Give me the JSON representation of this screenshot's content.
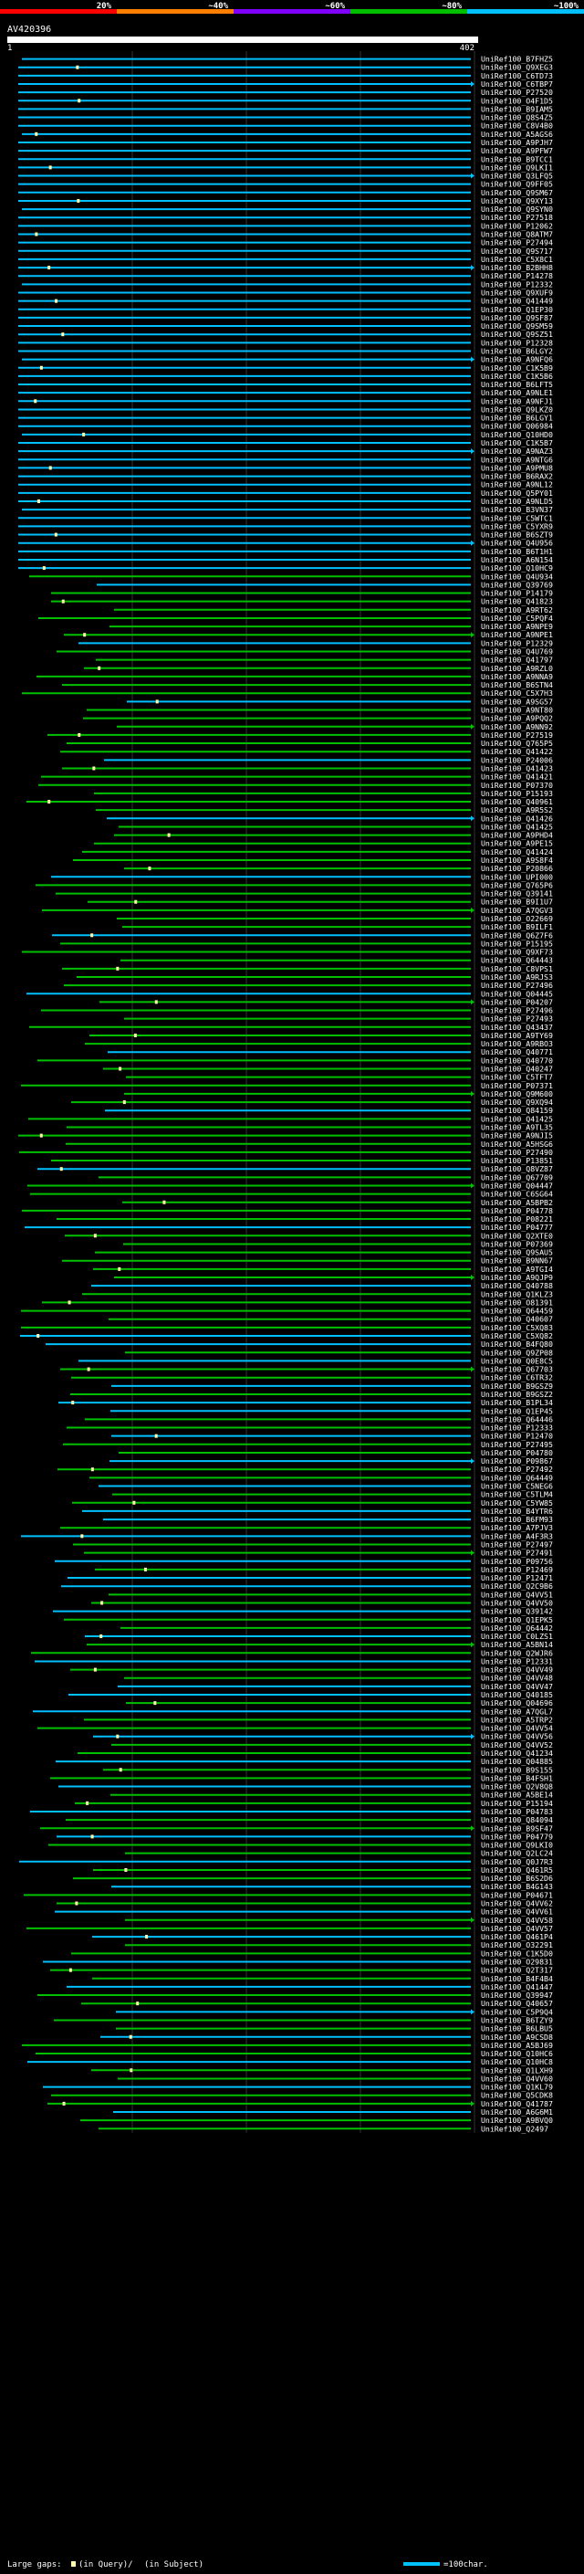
{
  "chart_data": {
    "type": "alignment-map",
    "query_label": "AV420396",
    "query_length": 402,
    "axis_start_label": "1",
    "axis_end_label": "402",
    "identity_legend": [
      {
        "label": "20%",
        "color": "#ff0000"
      },
      {
        "label": "~40%",
        "color": "#ff7f00"
      },
      {
        "label": "~60%",
        "color": "#7f00ff"
      },
      {
        "label": "~80%",
        "color": "#00c000"
      },
      {
        "label": "~100%",
        "color": "#00c0ff"
      }
    ],
    "footer": {
      "large_gaps_label": "Large gaps:",
      "in_query_label": "(in Query)/",
      "in_subject_label": "(in Subject)",
      "scale_label": "=100char."
    },
    "colors": {
      "cyan": "#00c0ff",
      "green": "#00c000",
      "white": "#ffffff",
      "gap_marker": "#ffffaa"
    },
    "hits": [
      "UniRef100_B7FHZ5",
      "UniRef100_Q9XEG3",
      "UniRef100_C6TD73",
      "UniRef100_C6TBP7",
      "UniRef100_P27520",
      "UniRef100_O4F1D5",
      "UniRef100_B9IAM5",
      "UniRef100_Q8S4Z5",
      "UniRef100_C8V4B0",
      "UniRef100_A5AGS6",
      "UniRef100_A9PJH7",
      "UniRef100_A9PFW7",
      "UniRef100_B9TCC1",
      "UniRef100_Q9LKI1",
      "UniRef100_Q3LFQ5",
      "UniRef100_Q9FF05",
      "UniRef100_Q9SM67",
      "UniRef100_Q9XY13",
      "UniRef100_Q9SYN0",
      "UniRef100_P27518",
      "UniRef100_P12062",
      "UniRef100_Q8ATM7",
      "UniRef100_P27494",
      "UniRef100_Q9S717",
      "UniRef100_C5X8C1",
      "UniRef100_B2BHH8",
      "UniRef100_P14278",
      "UniRef100_P12332",
      "UniRef100_Q9XUF9",
      "UniRef100_Q41449",
      "UniRef100_Q1EP30",
      "UniRef100_Q9SF87",
      "UniRef100_Q9SM59",
      "UniRef100_Q9SZ51",
      "UniRef100_P12328",
      "UniRef100_B6LGY2",
      "UniRef100_A9NFQ6",
      "UniRef100_C1K5B9",
      "UniRef100_C1K5B6",
      "UniRef100_B6LFT5",
      "UniRef100_A9NLE1",
      "UniRef100_A9NFJ1",
      "UniRef100_Q9LKZ0",
      "UniRef100_B6LGY1",
      "UniRef100_Q06984",
      "UniRef100_Q10HD0",
      "UniRef100_C1K5B7",
      "UniRef100_A9NAZ3",
      "UniRef100_A9NTG6",
      "UniRef100_A9PMU8",
      "UniRef100_B6RAX2",
      "UniRef100_A9NL12",
      "UniRef100_Q5PY01",
      "UniRef100_A9NLD5",
      "UniRef100_B3VN37",
      "UniRef100_C5WTC1",
      "UniRef100_C5YXR9",
      "UniRef100_B6SZT9",
      "UniRef100_Q4U956",
      "UniRef100_B6T1H1",
      "UniRef100_A6N154",
      "UniRef100_Q10HC9",
      "UniRef100_Q4U934",
      "UniRef100_Q39769",
      "UniRef100_P14179",
      "UniRef100_Q41823",
      "UniRef100_A9RT62",
      "UniRef100_C5PQF4",
      "UniRef100_A9NPE9",
      "UniRef100_A9NPE1",
      "UniRef100_P12329",
      "UniRef100_Q4U769",
      "UniRef100_Q41797",
      "UniRef100_A9RZL0",
      "UniRef100_A9NNA9",
      "UniRef100_B6STN4",
      "UniRef100_C5X7H3",
      "UniRef100_A9SG57",
      "UniRef100_A9NT80",
      "UniRef100_A9PQQ2",
      "UniRef100_A9NN92",
      "UniRef100_P27519",
      "UniRef100_Q765P5",
      "UniRef100_Q41422",
      "UniRef100_P24006",
      "UniRef100_Q41423",
      "UniRef100_Q41421",
      "UniRef100_P07370",
      "UniRef100_P15193",
      "UniRef100_Q40961",
      "UniRef100_A9R5S2",
      "UniRef100_Q41426",
      "UniRef100_Q41425",
      "UniRef100_A9PHD4",
      "UniRef100_A9PE15",
      "UniRef100_Q41424",
      "UniRef100_A9S8F4",
      "UniRef100_P20866",
      "UniRef100_UPI000",
      "UniRef100_Q765P6",
      "UniRef100_Q39141",
      "UniRef100_B9I1U7",
      "UniRef100_A7QGV3",
      "UniRef100_O22669",
      "UniRef100_B9ILF1",
      "UniRef100_Q6Z7F6",
      "UniRef100_P15195",
      "UniRef100_Q9XF73",
      "UniRef100_Q64443",
      "UniRef100_C8VPS1",
      "UniRef100_A9RJS3",
      "UniRef100_P27496",
      "UniRef100_Q04445",
      "UniRef100_P04207",
      "UniRef100_P27496",
      "UniRef100_P27493",
      "UniRef100_Q43437",
      "UniRef100_A9TY69",
      "UniRef100_A9RBO3",
      "UniRef100_Q40771",
      "UniRef100_Q40770",
      "UniRef100_Q40247",
      "UniRef100_C5TFT7",
      "UniRef100_P07371",
      "UniRef100_Q9M600",
      "UniRef100_Q9XQ94",
      "UniRef100_Q84159",
      "UniRef100_Q41425",
      "UniRef100_A9TL35",
      "UniRef100_A9NJI5",
      "UniRef100_A5HSG6",
      "UniRef100_P27490",
      "UniRef100_P13851",
      "UniRef100_Q8VZ87",
      "UniRef100_Q67709",
      "UniRef100_Q04447",
      "UniRef100_C6SG64",
      "UniRef100_A5BPB2",
      "UniRef100_P04778",
      "UniRef100_P08221",
      "UniRef100_P04777",
      "UniRef100_Q2XTE0",
      "UniRef100_P07369",
      "UniRef100_Q9SAU5",
      "UniRef100_B9NN67",
      "UniRef100_A9TGI4",
      "UniRef100_A9QJP9",
      "UniRef100_Q40788",
      "UniRef100_Q1KLZ3",
      "UniRef100_O81391",
      "UniRef100_Q64459",
      "UniRef100_Q40607",
      "UniRef100_C5XQ83",
      "UniRef100_C5XQ82",
      "UniRef100_B4FQ80",
      "UniRef100_Q9ZP08",
      "UniRef100_Q0E8C5",
      "UniRef100_Q67703",
      "UniRef100_C6TR32",
      "UniRef100_B9GSZ9",
      "UniRef100_B9GSZ2",
      "UniRef100_B1PL34",
      "UniRef100_Q1EP45",
      "UniRef100_Q64446",
      "UniRef100_P12333",
      "UniRef100_P12470",
      "UniRef100_P27495",
      "UniRef100_P04780",
      "UniRef100_P09867",
      "UniRef100_P27492",
      "UniRef100_Q64449",
      "UniRef100_C5NEG6",
      "UniRef100_C5TLM4",
      "UniRef100_C5YW85",
      "UniRef100_B4YTR6",
      "UniRef100_B6FM93",
      "UniRef100_A7PJV3",
      "UniRef100_A4F3R3",
      "UniRef100_P27497",
      "UniRef100_P27491",
      "UniRef100_P09756",
      "UniRef100_P12469",
      "UniRef100_P12471",
      "UniRef100_Q2C9B6",
      "UniRef100_Q4VV51",
      "UniRef100_Q4VV50",
      "UniRef100_Q39142",
      "UniRef100_Q1EPK5",
      "UniRef100_Q64442",
      "UniRef100_C0LZS1",
      "UniRef100_A5BN14",
      "UniRef100_Q2WJR6",
      "UniRef100_P12331",
      "UniRef100_Q4VV49",
      "UniRef100_Q4VV48",
      "UniRef100_Q4VV47",
      "UniRef100_Q40185",
      "UniRef100_Q04696",
      "UniRef100_A7QGL7",
      "UniRef100_A5TRP2",
      "UniRef100_Q4VV54",
      "UniRef100_Q4VV56",
      "UniRef100_Q4VV52",
      "UniRef100_Q41234",
      "UniRef100_Q04885",
      "UniRef100_B9S155",
      "UniRef100_B4FSH1",
      "UniRef100_Q2V8Q8",
      "UniRef100_A5BE14",
      "UniRef100_P15194",
      "UniRef100_P04783",
      "UniRef100_Q84094",
      "UniRef100_B9SF47",
      "UniRef100_P04779",
      "UniRef100_Q9LKI0",
      "UniRef100_Q2LC24",
      "UniRef100_Q0J7R3",
      "UniRef100_Q461R5",
      "UniRef100_B6S2D6",
      "UniRef100_B4G143",
      "UniRef100_P04671",
      "UniRef100_Q4VV62",
      "UniRef100_Q4VV61",
      "UniRef100_Q4VV58",
      "UniRef100_Q4VV57",
      "UniRef100_Q461P4",
      "UniRef100_O32291",
      "UniRef100_C1K5D0",
      "UniRef100_O29831",
      "UniRef100_Q2T317",
      "UniRef100_B4F4B4",
      "UniRef100_Q41447",
      "UniRef100_Q39947",
      "UniRef100_Q40657",
      "UniRef100_C5P9Q4",
      "UniRef100_B6TZY9",
      "UniRef100_B6LBU5",
      "UniRef100_A9CSD8",
      "UniRef100_A5BJ69",
      "UniRef100_Q10HC6",
      "UniRef100_Q10HC8",
      "UniRef100_Q1LXH9",
      "UniRef100_Q4VV60",
      "UniRef100_Q1KL79",
      "UniRef100_Q5CDK8",
      "UniRef100_Q41787",
      "UniRef100_A6G6M1",
      "UniRef100_A9BVQ0",
      "UniRef100_Q2497"
    ]
  }
}
